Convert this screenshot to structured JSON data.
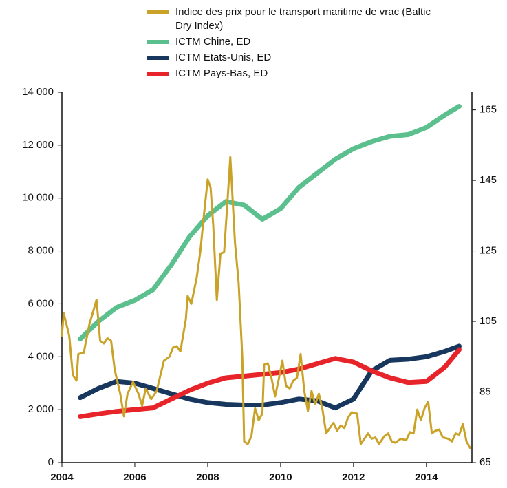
{
  "chart_data": {
    "type": "line",
    "xlim": [
      2004,
      2015.25
    ],
    "xticks": [
      2004,
      2006,
      2008,
      2010,
      2012,
      2014
    ],
    "ylim": [
      0,
      14000
    ],
    "yticks": [
      0,
      {
        "value": 2000,
        "label": "2 000"
      },
      {
        "value": 4000,
        "label": "4 000"
      },
      {
        "value": 6000,
        "label": "6 000"
      },
      {
        "value": 8000,
        "label": "8 000"
      },
      {
        "value": 10000,
        "label": "10 000"
      },
      {
        "value": 12000,
        "label": "12 000"
      },
      {
        "value": 14000,
        "label": "14 000"
      }
    ],
    "y2lim": [
      65,
      170
    ],
    "y2ticks": [
      65,
      85,
      105,
      125,
      145,
      165
    ],
    "series": [
      {
        "name": "Indice des prix pour le transport maritime de vrac (Baltic Dry Index)",
        "color": "#c9a227",
        "axis": "y",
        "x": [
          2004.0,
          2004.05,
          2004.2,
          2004.3,
          2004.4,
          2004.45,
          2004.6,
          2004.75,
          2004.95,
          2005.05,
          2005.15,
          2005.25,
          2005.35,
          2005.45,
          2005.6,
          2005.7,
          2005.8,
          2005.95,
          2006.1,
          2006.2,
          2006.3,
          2006.45,
          2006.6,
          2006.8,
          2006.95,
          2007.05,
          2007.15,
          2007.25,
          2007.4,
          2007.45,
          2007.55,
          2007.7,
          2007.8,
          2007.9,
          2008.0,
          2008.08,
          2008.15,
          2008.25,
          2008.35,
          2008.45,
          2008.55,
          2008.62,
          2008.75,
          2008.85,
          2008.95,
          2009.0,
          2009.1,
          2009.2,
          2009.3,
          2009.4,
          2009.5,
          2009.55,
          2009.65,
          2009.75,
          2009.85,
          2009.95,
          2010.05,
          2010.15,
          2010.25,
          2010.35,
          2010.45,
          2010.55,
          2010.65,
          2010.75,
          2010.85,
          2010.95,
          2011.05,
          2011.15,
          2011.25,
          2011.35,
          2011.45,
          2011.55,
          2011.65,
          2011.75,
          2011.85,
          2011.95,
          2012.1,
          2012.2,
          2012.3,
          2012.4,
          2012.5,
          2012.6,
          2012.7,
          2012.85,
          2012.95,
          2013.05,
          2013.15,
          2013.3,
          2013.45,
          2013.55,
          2013.65,
          2013.75,
          2013.85,
          2013.95,
          2014.05,
          2014.15,
          2014.25,
          2014.35,
          2014.45,
          2014.6,
          2014.7,
          2014.8,
          2014.9,
          2015.0,
          2015.1,
          2015.2
        ],
        "values": [
          4800,
          5650,
          4800,
          3300,
          3100,
          4100,
          4150,
          5200,
          6150,
          4600,
          4500,
          4700,
          4600,
          3500,
          2600,
          1750,
          2600,
          3050,
          2600,
          2150,
          2800,
          2400,
          2700,
          3850,
          4000,
          4350,
          4400,
          4200,
          5400,
          6300,
          6000,
          7000,
          8000,
          9400,
          10700,
          10400,
          9000,
          6150,
          7900,
          7950,
          10000,
          11550,
          8300,
          6800,
          4000,
          800,
          700,
          1000,
          2050,
          1600,
          1850,
          3700,
          3750,
          3200,
          2500,
          3150,
          3850,
          2900,
          2800,
          3100,
          3200,
          4100,
          2700,
          1950,
          2700,
          2200,
          2600,
          2000,
          1100,
          1300,
          1500,
          1200,
          1400,
          1300,
          1700,
          1900,
          1850,
          700,
          900,
          1100,
          900,
          950,
          700,
          1000,
          1100,
          800,
          750,
          900,
          850,
          1150,
          1100,
          2000,
          1600,
          2050,
          2300,
          1100,
          1200,
          1250,
          950,
          900,
          800,
          1100,
          1050,
          1450,
          800,
          550
        ]
      },
      {
        "name": "ICTM Chine, ED",
        "color": "#5cc08e",
        "axis": "y2",
        "x": [
          2004.5,
          2005,
          2005.5,
          2006,
          2006.5,
          2007,
          2007.5,
          2008,
          2008.5,
          2009,
          2009.5,
          2010,
          2010.5,
          2011,
          2011.5,
          2012,
          2012.5,
          2013,
          2013.5,
          2014,
          2014.5,
          2014.9
        ],
        "values": [
          100,
          105,
          109,
          111,
          114,
          121,
          129,
          135,
          139,
          138,
          134,
          137,
          143,
          147,
          151,
          154,
          156,
          157.5,
          158,
          160,
          163.5,
          166
        ]
      },
      {
        "name": "ICTM Etats-Unis, ED",
        "color": "#17375e",
        "axis": "y2",
        "x": [
          2004.5,
          2005,
          2005.5,
          2006,
          2006.5,
          2007,
          2007.5,
          2008,
          2008.5,
          2009,
          2009.5,
          2010,
          2010.5,
          2011,
          2011.5,
          2012,
          2012.5,
          2013,
          2013.5,
          2014,
          2014.5,
          2014.9
        ],
        "values": [
          83.4,
          86,
          88,
          87.5,
          86,
          84.5,
          83,
          82,
          81.5,
          81.3,
          81.3,
          82,
          83,
          82.5,
          80.5,
          83,
          91,
          94,
          94.3,
          95,
          96.5,
          98
        ]
      },
      {
        "name": "ICTM Pays-Bas, ED",
        "color": "#e8242b",
        "axis": "y2",
        "x": [
          2004.5,
          2005,
          2005.5,
          2006,
          2006.5,
          2007,
          2007.5,
          2008,
          2008.5,
          2009,
          2009.5,
          2010,
          2010.5,
          2011,
          2011.5,
          2012,
          2012.5,
          2013,
          2013.5,
          2014,
          2014.5,
          2014.9
        ],
        "values": [
          78,
          78.8,
          79.5,
          80,
          80.5,
          83,
          85.5,
          87.5,
          89,
          89.5,
          90,
          90.5,
          91.5,
          93,
          94.5,
          93.5,
          91,
          89,
          87.7,
          88,
          92,
          97
        ]
      }
    ]
  }
}
